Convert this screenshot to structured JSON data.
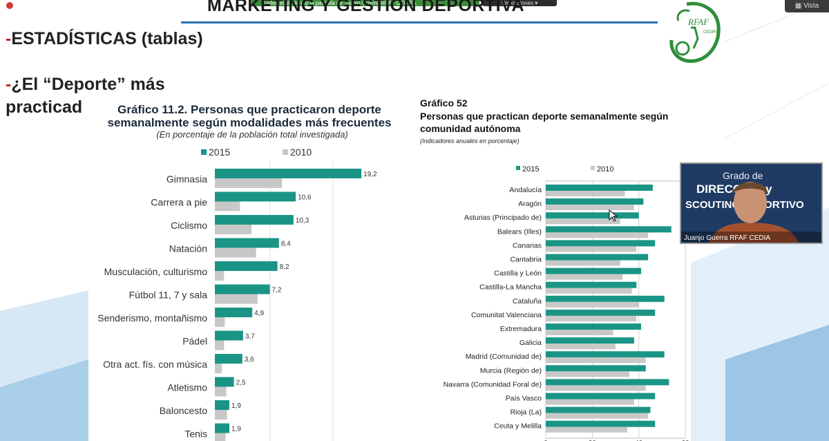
{
  "meeting": {
    "share_banner": "Usted está viendo la pantalla de Juanjo Guerra RFAF CEDIFA",
    "view_options": "Ver opciones",
    "vista_button": "Vista"
  },
  "slide": {
    "title": "MARKETING  Y  GESTIÓN DEPORTIVA",
    "bullet1": "ESTADÍSTICAS (tablas)",
    "bullet2_line1": "¿El “Deporte” más",
    "bullet2_line2": "practicad",
    "logo_text": "RFAF",
    "logo_sub": "CEDIFA"
  },
  "colors": {
    "series_2015": "#1a9585",
    "series_2010": "#c8c8c8",
    "accent_red": "#c0282c",
    "title_rule": "#2c6fb5"
  },
  "chart_data": [
    {
      "type": "bar",
      "orientation": "horizontal",
      "title_line1": "Gráfico 11.2. Personas que practicaron deporte",
      "title_line2": "semanalmente según modalidades más frecuentes",
      "subtitle": "(En porcentaje de la población total investigada)",
      "legend": [
        "2015",
        "2010"
      ],
      "legend_position": "top",
      "categories": [
        "Gimnasia",
        "Carrera a pie",
        "Ciclismo",
        "Natación",
        "Musculación, culturismo",
        "Fútbol 11, 7  y sala",
        "Senderismo, montañismo",
        "Pádel",
        "Otra act. fís. con música",
        "Atletismo",
        "Baloncesto",
        "Tenis"
      ],
      "series": [
        {
          "name": "2015",
          "values": [
            19.2,
            10.6,
            10.3,
            8.4,
            8.2,
            7.2,
            4.9,
            3.7,
            3.6,
            2.5,
            1.9,
            1.9
          ]
        },
        {
          "name": "2010",
          "values": [
            8.8,
            3.3,
            4.8,
            5.4,
            1.2,
            5.6,
            1.3,
            1.2,
            0.9,
            1.5,
            1.6,
            1.4
          ]
        }
      ],
      "value_labels": [
        "19,2",
        "10,6",
        "10,3",
        "8,4",
        "8,2",
        "7,2",
        "4,9",
        "3,7",
        "3,6",
        "2,5",
        "1,9",
        "1,9"
      ],
      "xlim": [
        0,
        20
      ]
    },
    {
      "type": "bar",
      "orientation": "horizontal",
      "title_line1": "Gráfico 52",
      "title_line2": "Personas que practican deporte semanalmente según",
      "title_line3": "comunidad autónoma",
      "subtitle": "(Indicadores anuales en porcentaje)",
      "legend": [
        "2015",
        "2010"
      ],
      "legend_position": "top",
      "categories": [
        "Andalucía",
        "Aragón",
        "Asturias (Principado de)",
        "Balears (Illes)",
        "Canarias",
        "Cantabria",
        "Castilla y León",
        "Castilla-La Mancha",
        "Cataluña",
        "Comunitat Valenciana",
        "Extremadura",
        "Galicia",
        "Madrid (Comunidad de)",
        "Murcia (Región de)",
        "Navarra (Comunidad Foral de)",
        "País Vasco",
        "Rioja (La)",
        "Ceuta y Melilla"
      ],
      "series": [
        {
          "name": "2015",
          "values": [
            46,
            42,
            40,
            54,
            47,
            44,
            41,
            39,
            51,
            47,
            41,
            38,
            51,
            43,
            53,
            47,
            45,
            47
          ]
        },
        {
          "name": "2010",
          "values": [
            34,
            38,
            32,
            44,
            39,
            32,
            33,
            37,
            40,
            39,
            29,
            30,
            43,
            36,
            43,
            38,
            44,
            35
          ]
        }
      ],
      "xlim": [
        0,
        60
      ],
      "xticks": [
        0,
        20,
        40,
        60
      ],
      "grid": true
    }
  ],
  "video": {
    "participant_name": "Juanjo Guerra RFAF CEDIA",
    "bg_line1": "Grado de",
    "bg_line2": "DIRECCIÓN y",
    "bg_line3": "SCOUTING DEPORTIVO"
  }
}
